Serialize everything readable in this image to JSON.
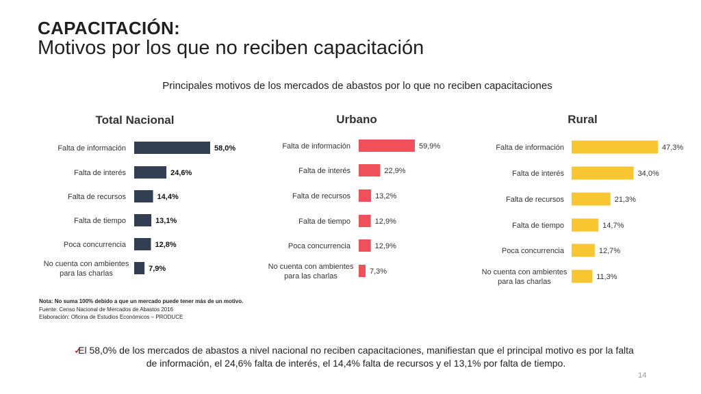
{
  "header": {
    "title": "CAPACITACIÓN:",
    "subtitle": "Motivos por los que no reciben capacitación"
  },
  "figure_caption": "Principales motivos de los mercados de abastos por lo que no reciben capacitaciones",
  "chart_data": [
    {
      "type": "bar",
      "orientation": "horizontal",
      "title": "Total Nacional",
      "categories": [
        "Falta de información",
        "Falta de interés",
        "Falta de recursos",
        "Falta de tiempo",
        "Poca concurrencia",
        "No cuenta con ambientes para las charlas"
      ],
      "values": [
        58.0,
        24.6,
        14.4,
        13.1,
        12.8,
        7.9
      ],
      "labels": [
        "58,0%",
        "24,6%",
        "14,4%",
        "13,1%",
        "12,8%",
        "7,9%"
      ],
      "color": "#323e52",
      "xlim": [
        0,
        58.0
      ]
    },
    {
      "type": "bar",
      "orientation": "horizontal",
      "title": "Urbano",
      "categories": [
        "Falta de información",
        "Falta de interés",
        "Falta de recursos",
        "Falta de tiempo",
        "Poca concurrencia",
        "No cuenta con ambientes para las charlas"
      ],
      "values": [
        59.9,
        22.9,
        13.2,
        12.9,
        12.9,
        7.3
      ],
      "labels": [
        "59,9%",
        "22,9%",
        "13,2%",
        "12,9%",
        "12,9%",
        "7,3%"
      ],
      "color": "#f0505a",
      "xlim": [
        0,
        59.9
      ]
    },
    {
      "type": "bar",
      "orientation": "horizontal",
      "title": "Rural",
      "categories": [
        "Falta de información",
        "Falta de interés",
        "Falta de recursos",
        "Falta de tiempo",
        "Poca concurrencia",
        "No cuenta con ambientes para las charlas"
      ],
      "values": [
        47.3,
        34.0,
        21.3,
        14.7,
        12.7,
        11.3
      ],
      "labels": [
        "47,3%",
        "34,0%",
        "21,3%",
        "14,7%",
        "12,7%",
        "11,3%"
      ],
      "color": "#f8c631",
      "xlim": [
        0,
        47.3
      ]
    }
  ],
  "footnote": {
    "note_label": "Nota:",
    "note_text": "No suma 100% debido a que un mercado puede tener más de un motivo.",
    "source": "Fuente: Censo Nacional de Mercados de Abastos 2016",
    "elaboration": "Elaboración: Oficina de Estudios Económicos – PRODUCE"
  },
  "conclusion": {
    "icon": "check-icon",
    "text": "El 58,0% de los mercados de abastos a nivel nacional no reciben capacitaciones, manifiestan que el principal motivo es por la falta de información, el 24,6% falta de interés, el 14,4% falta de recursos y el 13,1% por falta de tiempo."
  },
  "page_number": "14",
  "colors": {
    "check": "#c00000"
  }
}
